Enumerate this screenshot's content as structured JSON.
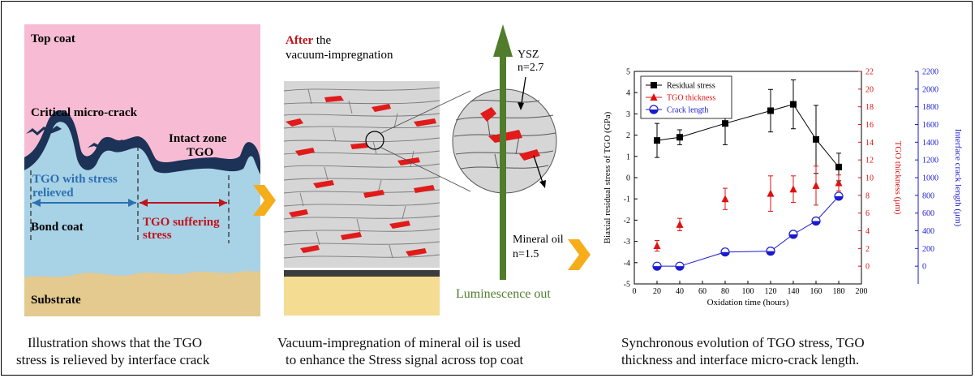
{
  "panel1": {
    "top_coat": "Top coat",
    "critical_crack": "Critical micro-crack",
    "intact_zone": "Intact zone",
    "tgo": "TGO",
    "tgo_relieved_1": "TGO with stress",
    "tgo_relieved_2": "relieved",
    "tgo_suffering_1": "TGO suffering",
    "tgo_suffering_2": "stress",
    "bond_coat": "Bond coat",
    "substrate": "Substrate",
    "caption_1": "Illustration shows that the TGO",
    "caption_2": "stress is relieved by interface crack",
    "colors": {
      "top_coat": "#f7bcd3",
      "bond_coat": "#a8d2e6",
      "substrate": "#e4ca8e",
      "tgo": "#1c3256",
      "relieved": "#2d6fb2",
      "suffering": "#c0141c"
    }
  },
  "panel2": {
    "after": "After",
    "after_rest": " the",
    "after_line2": "vacuum-impregnation",
    "ysz": "YSZ",
    "ysz_n": "n=2.7",
    "mineral_oil": "Mineral oil",
    "mineral_oil_n": "n=1.5",
    "luminescence": "Luminescence out",
    "caption_1": "Vacuum-impregnation of mineral oil is used",
    "caption_2": "to enhance the Stress signal across top coat",
    "colors": {
      "oil": "#e11a1a",
      "arrow": "#4f7d2c",
      "coat": "#d6d6d6"
    }
  },
  "panel3": {
    "caption_1": "Synchronous evolution of TGO stress, TGO",
    "caption_2": "thickness and interface micro-crack length."
  },
  "chart_data": {
    "type": "scatter",
    "xlabel": "Oxidation time (hours)",
    "xlim": [
      0,
      200
    ],
    "xticks": [
      0,
      20,
      40,
      60,
      80,
      100,
      120,
      140,
      160,
      180,
      200
    ],
    "axes": [
      {
        "label": "Biaxial residual stress of TGO (GPa)",
        "side": "left",
        "lim": [
          -5,
          5
        ],
        "ticks": [
          -5,
          -4,
          -3,
          -2,
          -1,
          0,
          1,
          2,
          3,
          4,
          5
        ],
        "color": "#000000"
      },
      {
        "label": "TGO thickness (μm)",
        "side": "right",
        "lim": [
          -2,
          22
        ],
        "ticks": [
          0,
          2,
          4,
          6,
          8,
          10,
          12,
          14,
          16,
          18,
          20,
          22
        ],
        "color": "#e01010"
      },
      {
        "label": "Interface crack length (μm)",
        "side": "right-outer",
        "lim": [
          -200,
          2200
        ],
        "ticks": [
          0,
          200,
          400,
          600,
          800,
          1000,
          1200,
          1400,
          1600,
          1800,
          2000,
          2200
        ],
        "color": "#1a1ad0"
      }
    ],
    "series": [
      {
        "name": "Residual stress",
        "axis": 0,
        "marker": "square",
        "line": true,
        "color": "#000000",
        "x": [
          20,
          40,
          80,
          120,
          140,
          160,
          180
        ],
        "y": [
          1.75,
          1.9,
          2.55,
          3.15,
          3.45,
          1.8,
          0.5
        ],
        "err": [
          0.8,
          0.35,
          1.0,
          1.0,
          1.15,
          1.6,
          0.65
        ]
      },
      {
        "name": "TGO thickness",
        "axis": 1,
        "marker": "triangle",
        "line": false,
        "color": "#e01010",
        "x": [
          20,
          40,
          80,
          120,
          140,
          160,
          180
        ],
        "y": [
          2.3,
          4.7,
          7.6,
          8.2,
          8.7,
          9.1,
          9.4
        ],
        "err": [
          0.6,
          0.7,
          1.2,
          2.0,
          1.5,
          2.2,
          0.9
        ]
      },
      {
        "name": "Crack length",
        "axis": 2,
        "marker": "circle-half",
        "line": true,
        "color": "#1a1ad0",
        "x": [
          20,
          40,
          80,
          120,
          140,
          160,
          180
        ],
        "y": [
          0,
          0,
          160,
          170,
          360,
          510,
          790
        ],
        "err": [
          0,
          0,
          0,
          0,
          0,
          0,
          0
        ]
      }
    ],
    "legend": "top-left"
  }
}
